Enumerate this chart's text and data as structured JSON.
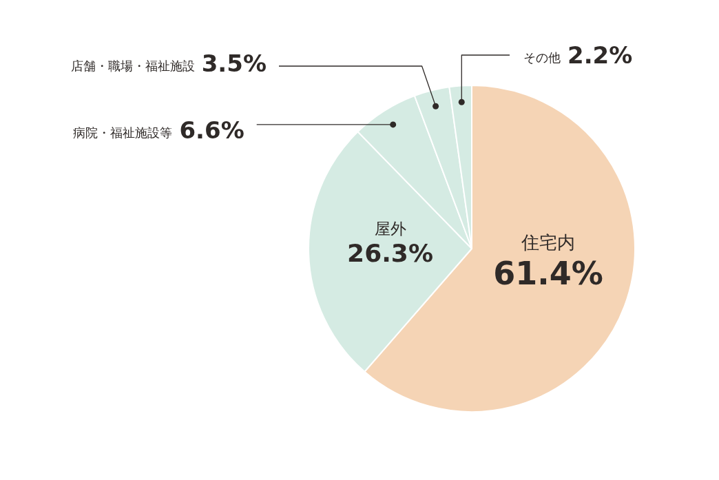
{
  "chart_data": {
    "type": "pie",
    "categories": [
      "住宅内",
      "屋外",
      "病院・福祉施設等",
      "店舗・職場・福祉施設",
      "その他"
    ],
    "values": [
      61.4,
      26.3,
      6.6,
      3.5,
      2.2
    ],
    "value_labels": [
      "61.4%",
      "26.3%",
      "6.6%",
      "3.5%",
      "2.2%"
    ],
    "colors": [
      "#f5d4b5",
      "#d5ebe3",
      "#d5ebe3",
      "#d5ebe3",
      "#d5ebe3"
    ],
    "legend": false
  }
}
